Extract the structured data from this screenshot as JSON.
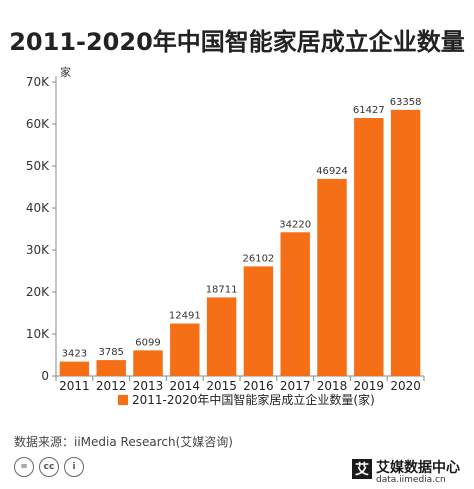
{
  "title": "2011-2020年中国智能家居成立企业数量",
  "source": "数据来源：iiMedia Research(艾媒咨询)",
  "license_icons": [
    {
      "name": "cc-equal-icon",
      "glyph": "="
    },
    {
      "name": "cc-icon",
      "glyph": "cc"
    },
    {
      "name": "cc-by-icon",
      "glyph": "i"
    }
  ],
  "brand": {
    "mark": "艾",
    "name": "艾媒数据中心",
    "url": "data.iimedia.cn"
  },
  "colors": {
    "bar": "#F46F16",
    "axis": "#888888"
  },
  "chart_data": {
    "type": "bar",
    "title": "2011-2020年中国智能家居成立企业数量",
    "ylabel": "家",
    "xlabel": "",
    "categories": [
      "2011",
      "2012",
      "2013",
      "2014",
      "2015",
      "2016",
      "2017",
      "2018",
      "2019",
      "2020"
    ],
    "series": [
      {
        "name": "2011-2020年中国智能家居成立企业数量(家)",
        "values": [
          3423,
          3785,
          6099,
          12491,
          18711,
          26102,
          34220,
          46924,
          61427,
          63358
        ]
      }
    ],
    "ylim": [
      0,
      70000
    ],
    "yticks": [
      {
        "value": 0,
        "label": "0"
      },
      {
        "value": 10000,
        "label": "10K"
      },
      {
        "value": 20000,
        "label": "20K"
      },
      {
        "value": 30000,
        "label": "30K"
      },
      {
        "value": 40000,
        "label": "40K"
      },
      {
        "value": 50000,
        "label": "50K"
      },
      {
        "value": 60000,
        "label": "60K"
      },
      {
        "value": 70000,
        "label": "70K"
      }
    ],
    "grid": false,
    "legend": "bottom"
  }
}
